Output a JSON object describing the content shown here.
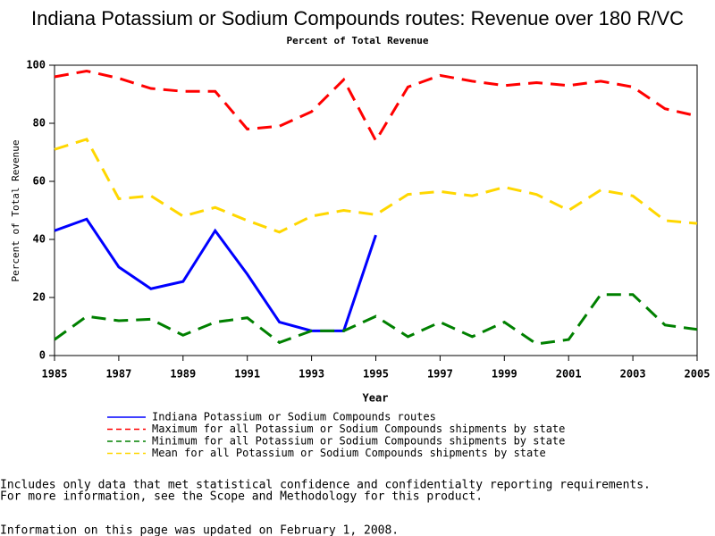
{
  "chart_data": {
    "type": "line",
    "title": "Indiana Potassium or Sodium Compounds routes: Revenue over 180 R/VC",
    "subtitle": "Percent of Total Revenue",
    "x_label": "Year",
    "y_label": "Percent of Total Revenue",
    "x": [
      1985,
      1986,
      1987,
      1988,
      1989,
      1990,
      1991,
      1992,
      1993,
      1994,
      1995,
      1996,
      1997,
      1998,
      1999,
      2000,
      2001,
      2002,
      2003,
      2004,
      2005
    ],
    "xlim": [
      1985,
      2005
    ],
    "xticks": [
      1985,
      1987,
      1989,
      1991,
      1993,
      1995,
      1997,
      1999,
      2001,
      2003,
      2005
    ],
    "ylim": [
      0,
      100
    ],
    "yticks": [
      0,
      20,
      40,
      60,
      80,
      100
    ],
    "series": [
      {
        "name": "Indiana Potassium or Sodium Compounds routes",
        "color": "#0000ff",
        "dashed": false,
        "values": [
          43,
          47,
          30.5,
          23,
          25.5,
          43,
          28,
          11.5,
          8.5,
          8.5,
          41.5,
          null,
          null,
          null,
          null,
          null,
          null,
          null,
          null,
          null,
          null
        ]
      },
      {
        "name": "Maximum for all Potassium or Sodium Compounds shipments by state",
        "color": "#ff0000",
        "dashed": true,
        "values": [
          96,
          98,
          95.5,
          92,
          91,
          91,
          78,
          79,
          84,
          95,
          74,
          92.5,
          96.5,
          94.5,
          93,
          94,
          93,
          94.5,
          92.5,
          85,
          82.5
        ]
      },
      {
        "name": "Minimum for all Potassium or Sodium Compounds shipments by state",
        "color": "#008000",
        "dashed": true,
        "values": [
          5.5,
          13.5,
          12,
          12.5,
          7,
          11.5,
          13,
          4.5,
          8.5,
          8.5,
          13.5,
          6.5,
          11.5,
          6.5,
          11.5,
          4,
          5.5,
          21,
          21,
          10.5,
          9
        ]
      },
      {
        "name": "Mean for all Potassium or Sodium Compounds shipments by state",
        "color": "#ffd700",
        "dashed": true,
        "values": [
          71,
          74.5,
          54,
          55,
          48,
          51,
          46.5,
          42.5,
          48,
          50,
          48.5,
          55.5,
          56.5,
          55,
          58,
          55.5,
          50,
          57,
          55,
          46.5,
          45.5
        ]
      }
    ],
    "notes": [
      "Includes only data that met statistical confidence and confidentialty reporting requirements.",
      "For more information, see the Scope and Methodology for this product."
    ],
    "footer": "Information on this page was updated on February 1, 2008."
  }
}
